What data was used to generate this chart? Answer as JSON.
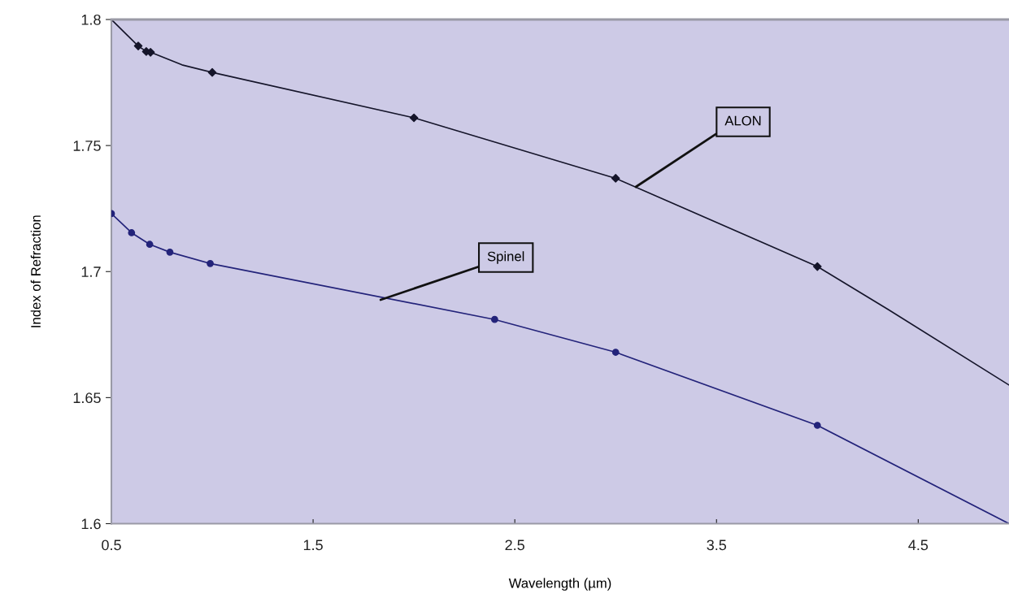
{
  "chart_data": {
    "type": "line",
    "xlabel": "Wavelength (µm)",
    "ylabel": "Index of Refraction",
    "xlim": [
      0.5,
      4.95
    ],
    "xticks": [
      0.5,
      1.5,
      2.5,
      3.5,
      4.5
    ],
    "ylim": [
      1.6,
      1.8
    ],
    "yticks": [
      1.6,
      1.65,
      1.7,
      1.75,
      1.8
    ],
    "grid": false,
    "legend": false,
    "series": [
      {
        "color": "#15152a",
        "marker": "none",
        "x": [
          0.5,
          0.633,
          0.673,
          0.694,
          0.85,
          1.0,
          2.0,
          3.0,
          4.0,
          4.35,
          4.95
        ],
        "values": [
          1.8,
          1.7895,
          1.7873,
          1.787,
          1.782,
          1.779,
          1.761,
          1.737,
          1.702,
          1.685,
          1.655
        ]
      },
      {
        "type": "scatter",
        "color": "#15152a",
        "marker": "diamond",
        "x": [
          0.633,
          0.673,
          0.694,
          1.0,
          2.0,
          3.0,
          4.0
        ],
        "values": [
          1.7895,
          1.7873,
          1.787,
          1.779,
          1.761,
          1.737,
          1.702
        ]
      },
      {
        "color": "#23237a",
        "marker": "none",
        "x": [
          0.5,
          0.6,
          0.69,
          0.79,
          0.99,
          2.4,
          3.0,
          4.0,
          4.95
        ],
        "values": [
          1.723,
          1.7154,
          1.7108,
          1.7077,
          1.7032,
          1.681,
          1.668,
          1.639,
          1.6
        ]
      },
      {
        "type": "scatter",
        "color": "#23237a",
        "marker": "circle",
        "x": [
          0.5,
          0.6,
          0.69,
          0.79,
          0.99,
          2.4,
          3.0,
          4.0
        ],
        "values": [
          1.723,
          1.7154,
          1.7108,
          1.7077,
          1.7032,
          1.681,
          1.668,
          1.639
        ]
      }
    ],
    "annotations": [
      {
        "text": "ALON",
        "x": 3.1,
        "y": 1.7336
      },
      {
        "text": "Spinel",
        "x": 1.835,
        "y": 1.6888
      }
    ]
  }
}
